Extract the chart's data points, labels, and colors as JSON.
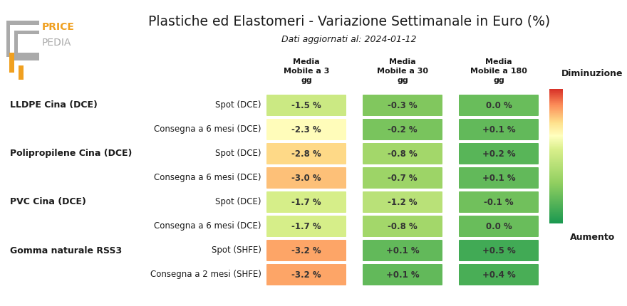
{
  "title": "Plastiche ed Elastomeri - Variazione Settimanale in Euro (%)",
  "subtitle": "Dati aggiornati al: 2024-01-12",
  "col_headers": [
    "Media\nMobile a 3\ngg",
    "Media\nMobile a 30\ngg",
    "Media\nMobile a 180\ngg"
  ],
  "row_groups": [
    {
      "group_label": "LLDPE Cina (DCE)",
      "rows": [
        {
          "label": "Spot (DCE)",
          "values": [
            -1.5,
            -0.3,
            0.0
          ]
        },
        {
          "label": "Consegna a 6 mesi (DCE)",
          "values": [
            -2.3,
            -0.2,
            0.1
          ]
        }
      ]
    },
    {
      "group_label": "Polipropilene Cina (DCE)",
      "rows": [
        {
          "label": "Spot (DCE)",
          "values": [
            -2.8,
            -0.8,
            0.2
          ]
        },
        {
          "label": "Consegna a 6 mesi (DCE)",
          "values": [
            -3.0,
            -0.7,
            0.1
          ]
        }
      ]
    },
    {
      "group_label": "PVC Cina (DCE)",
      "rows": [
        {
          "label": "Spot (DCE)",
          "values": [
            -1.7,
            -1.2,
            -0.1
          ]
        },
        {
          "label": "Consegna a 6 mesi (DCE)",
          "values": [
            -1.7,
            -0.8,
            0.0
          ]
        }
      ]
    },
    {
      "group_label": "Gomma naturale RSS3",
      "rows": [
        {
          "label": "Spot (SHFE)",
          "values": [
            -3.2,
            0.1,
            0.5
          ]
        },
        {
          "label": "Consegna a 2 mesi (SHFE)",
          "values": [
            -3.2,
            0.1,
            0.4
          ]
        }
      ]
    }
  ],
  "value_range": [
    -4.0,
    1.0
  ],
  "bg_color": "#ffffff",
  "text_color": "#1a1a1a",
  "colorbar_label_top": "Diminuzione",
  "colorbar_label_bottom": "Aumento",
  "logo_orange": "#f0a020",
  "logo_gray": "#aaaaaa",
  "cell_text_color": "#333333"
}
